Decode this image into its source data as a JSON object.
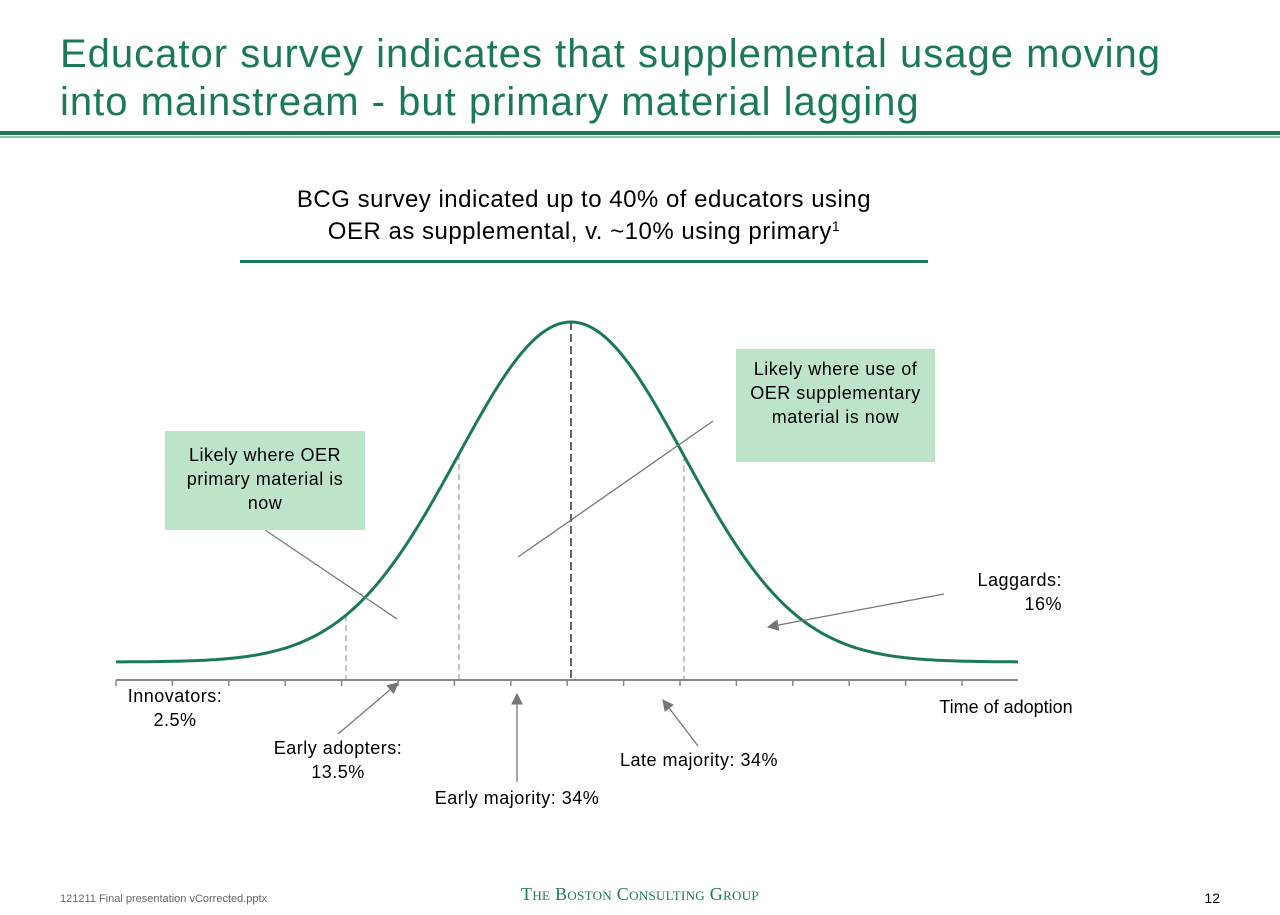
{
  "title": "Educator survey indicates that supplemental usage moving into mainstream - but primary material lagging",
  "subtitle": {
    "line1": "BCG survey indicated up to 40% of educators using",
    "line2": "OER as supplemental, v. ~10% using primary",
    "footnote_marker": "1"
  },
  "callouts": {
    "primary": "Likely where OER primary material is now",
    "supplementary": "Likely where use of OER supplementary material is now"
  },
  "segments": {
    "innovators": {
      "name": "Innovators:",
      "value": "2.5%"
    },
    "early_adopters": {
      "name": "Early adopters:",
      "value": "13.5%"
    },
    "early_majority": "Early majority: 34%",
    "late_majority": "Late majority: 34%",
    "laggards": {
      "name": "Laggards:",
      "value": "16%"
    }
  },
  "axis_label": "Time of adoption",
  "colors": {
    "brand_green": "#1b7a55",
    "light_green": "#8cc7a6",
    "callout_fill": "#bde3c8",
    "axis_gray": "#888888"
  },
  "footer": {
    "filename": "121211 Final presentation vCorrected.pptx",
    "logo": "The Boston Consulting Group",
    "page": "12"
  }
}
